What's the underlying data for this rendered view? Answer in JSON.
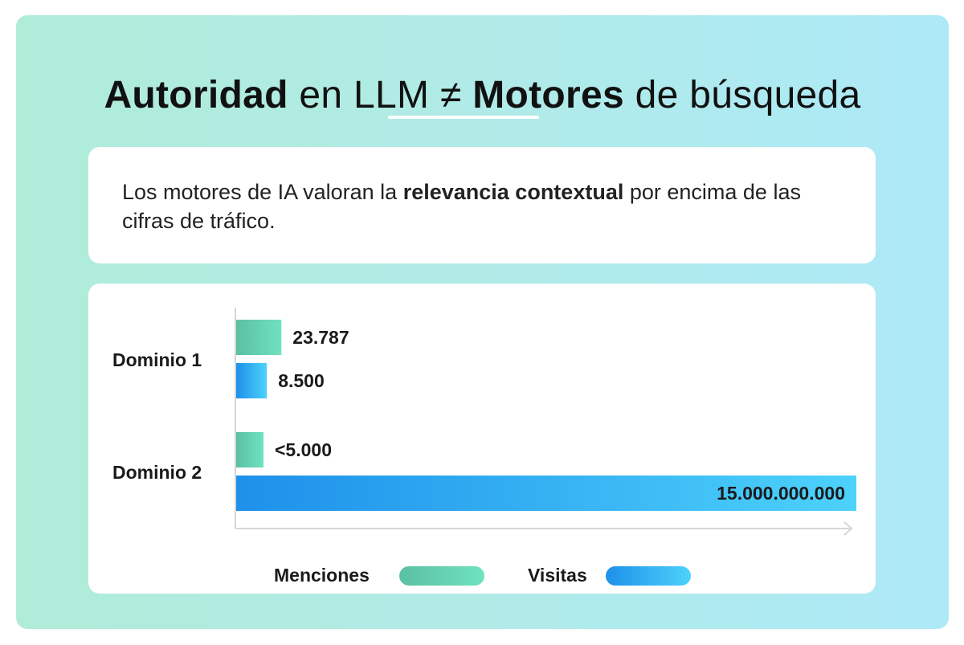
{
  "header": {
    "title_part1": "Autoridad",
    "title_part2": " en LLM ≠ ",
    "title_part3": "Motores",
    "title_part4": " de búsqueda"
  },
  "intro": {
    "text_before": "Los motores de IA valoran la ",
    "text_bold": "relevancia contextual",
    "text_after": " por encima de las cifras de tráfico."
  },
  "colors": {
    "menciones_start": "#5bc0a3",
    "menciones_end": "#6fe2c0",
    "visitas_start": "#1e90ea",
    "visitas_end": "#4dd2fb"
  },
  "chart_data": {
    "type": "bar",
    "orientation": "horizontal",
    "scale": "non-linear (illustrative)",
    "categories": [
      "Dominio 1",
      "Dominio 2"
    ],
    "series": [
      {
        "name": "Menciones",
        "values": [
          23787,
          5000
        ],
        "labels": [
          "23.787",
          "<5.000"
        ]
      },
      {
        "name": "Visitas",
        "values": [
          8500,
          15000000000
        ],
        "labels": [
          "8.500",
          "15.000.000.000"
        ]
      }
    ],
    "title": "",
    "xlabel": "",
    "ylabel": "",
    "legend": "bottom",
    "grid": false
  }
}
